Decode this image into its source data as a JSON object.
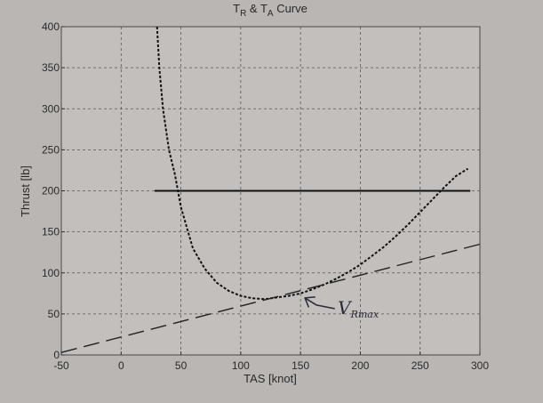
{
  "chart_data": {
    "type": "line",
    "title_parts": {
      "t1": "T",
      "sub1": "R",
      "amp": " & T",
      "sub2": "A",
      "rest": " Curve"
    },
    "xlabel": "TAS [knot]",
    "ylabel": "Thrust [lb]",
    "xlim": [
      -50,
      300
    ],
    "ylim": [
      0,
      400
    ],
    "xticks": [
      -50,
      0,
      50,
      100,
      150,
      200,
      250,
      300
    ],
    "yticks": [
      0,
      50,
      100,
      150,
      200,
      250,
      300,
      350,
      400
    ],
    "grid": true,
    "series": [
      {
        "style": "dotted",
        "color": "#111111",
        "x": [
          30,
          32,
          35,
          40,
          45,
          50,
          55,
          60,
          70,
          80,
          90,
          100,
          110,
          120,
          130,
          140,
          150,
          160,
          170,
          180,
          190,
          200,
          210,
          220,
          230,
          240,
          250,
          260,
          270,
          280,
          290
        ],
        "y": [
          400,
          350,
          300,
          250,
          220,
          180,
          155,
          130,
          105,
          88,
          78,
          72,
          69,
          68,
          70,
          72,
          75,
          80,
          86,
          93,
          101,
          110,
          121,
          132,
          145,
          159,
          174,
          189,
          204,
          218,
          227
        ]
      },
      {
        "style": "solid",
        "color": "#111111",
        "x": [
          28,
          292
        ],
        "y": [
          200,
          200
        ]
      },
      {
        "style": "long-dash",
        "color": "#222222",
        "x": [
          -50,
          300
        ],
        "y": [
          3,
          135
        ]
      }
    ],
    "annotations": [
      {
        "text": "V",
        "sub": "Rmax",
        "x": 150,
        "y": 76
      }
    ]
  }
}
